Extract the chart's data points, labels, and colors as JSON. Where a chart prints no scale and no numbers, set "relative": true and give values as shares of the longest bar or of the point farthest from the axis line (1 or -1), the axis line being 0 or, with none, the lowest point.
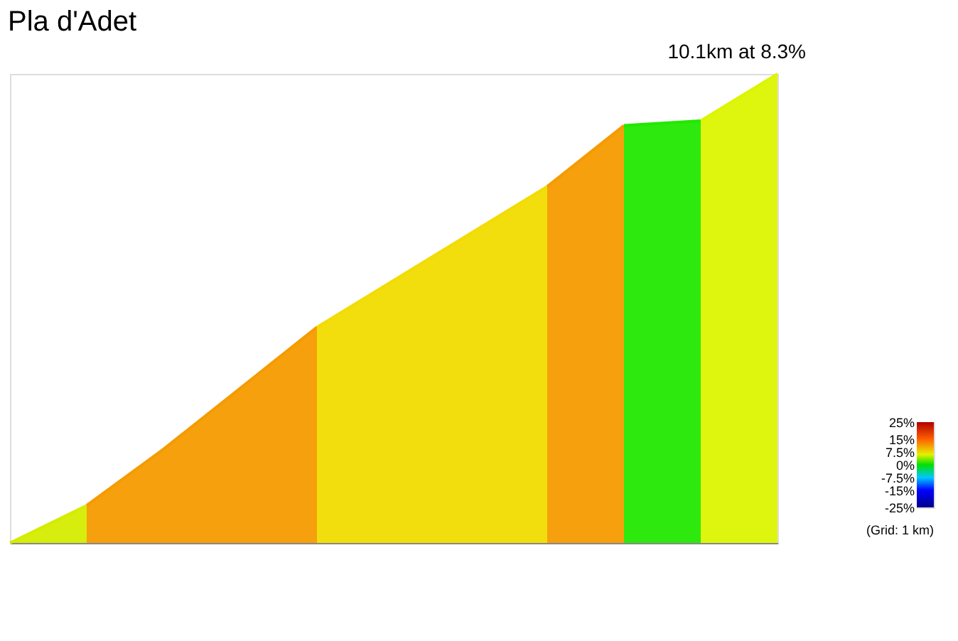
{
  "chart_data": {
    "type": "area",
    "title": "Pla d'Adet",
    "subtitle": "10.1km at 8.3%",
    "relative": true,
    "categories": [
      null,
      null,
      null,
      null,
      null,
      null,
      null,
      null,
      null,
      null,
      null
    ],
    "series": [
      {
        "color": "#d4ec00",
        "values": [
          0,
          0.08,
          null,
          null,
          null,
          null,
          null,
          null,
          null,
          null,
          null
        ]
      },
      {
        "color": "#f59b00",
        "values": [
          null,
          0.08,
          0.2,
          0.33,
          0.46,
          null,
          null,
          null,
          null,
          null,
          null
        ]
      },
      {
        "color": "#f2dc00",
        "values": [
          null,
          null,
          null,
          null,
          0.46,
          0.56,
          0.66,
          0.76,
          null,
          null,
          null
        ]
      },
      {
        "color": "#f59b00",
        "values": [
          null,
          null,
          null,
          null,
          null,
          null,
          null,
          0.76,
          0.89,
          null,
          null
        ]
      },
      {
        "color": "#22e800",
        "values": [
          null,
          null,
          null,
          null,
          null,
          null,
          null,
          null,
          0.89,
          0.9,
          null
        ]
      },
      {
        "color": "#dcf500",
        "values": [
          null,
          null,
          null,
          null,
          null,
          null,
          null,
          null,
          null,
          0.9,
          1
        ]
      }
    ],
    "clim": [
      -25,
      25
    ],
    "cticks": [
      {
        "value": 25,
        "label": "25%"
      },
      {
        "value": 15,
        "label": "15%"
      },
      {
        "value": 7.5,
        "label": "7.5%"
      },
      {
        "value": 0,
        "label": "0%"
      },
      {
        "value": -7.5,
        "label": "-7.5%"
      },
      {
        "value": -15,
        "label": "-15%"
      },
      {
        "value": -25,
        "label": "-25%"
      }
    ],
    "annotations": [
      "(Grid: 1 km)"
    ]
  }
}
